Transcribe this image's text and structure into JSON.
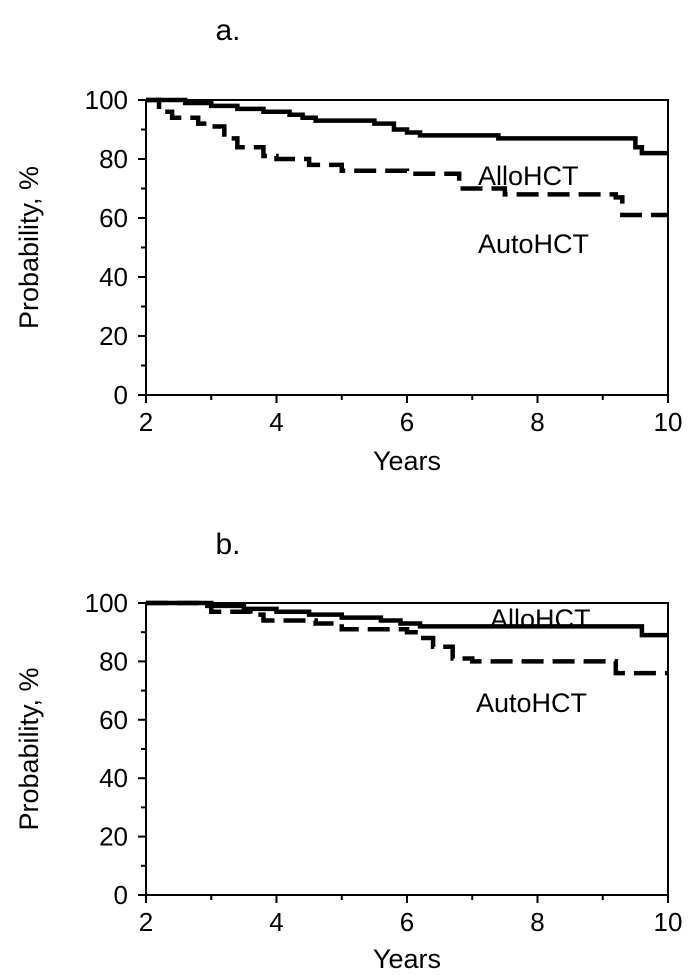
{
  "chart_data": [
    {
      "type": "line",
      "panel_label": "a.",
      "xlabel": "Years",
      "ylabel": "Probability, %",
      "xlim": [
        2,
        10
      ],
      "ylim": [
        0,
        100
      ],
      "x_ticks": [
        "2",
        "4",
        "6",
        "8",
        "10"
      ],
      "y_ticks": [
        "0",
        "20",
        "40",
        "60",
        "80",
        "100"
      ],
      "series": [
        {
          "name": "AlloHCT",
          "line_style": "solid",
          "points": [
            [
              2.0,
              100
            ],
            [
              2.6,
              99
            ],
            [
              3.0,
              98
            ],
            [
              3.4,
              97
            ],
            [
              3.8,
              96
            ],
            [
              4.2,
              95
            ],
            [
              4.4,
              94
            ],
            [
              4.6,
              93
            ],
            [
              5.0,
              93
            ],
            [
              5.5,
              92
            ],
            [
              5.8,
              90
            ],
            [
              6.0,
              89
            ],
            [
              6.2,
              88
            ],
            [
              7.0,
              88
            ],
            [
              7.4,
              87
            ],
            [
              8.0,
              87
            ],
            [
              9.2,
              87
            ],
            [
              9.5,
              84
            ],
            [
              9.6,
              82
            ],
            [
              10.0,
              82
            ]
          ]
        },
        {
          "name": "AutoHCT",
          "line_style": "dashed",
          "points": [
            [
              2.0,
              100
            ],
            [
              2.2,
              96
            ],
            [
              2.4,
              94
            ],
            [
              2.8,
              92
            ],
            [
              3.0,
              91
            ],
            [
              3.2,
              87
            ],
            [
              3.4,
              84
            ],
            [
              3.8,
              81
            ],
            [
              4.0,
              80
            ],
            [
              4.5,
              78
            ],
            [
              5.0,
              76
            ],
            [
              5.5,
              76
            ],
            [
              6.0,
              75
            ],
            [
              6.8,
              70
            ],
            [
              7.0,
              70
            ],
            [
              7.5,
              68
            ],
            [
              8.5,
              68
            ],
            [
              9.2,
              67
            ],
            [
              9.3,
              61
            ],
            [
              10.0,
              61
            ]
          ]
        }
      ]
    },
    {
      "type": "line",
      "panel_label": "b.",
      "xlabel": "Years",
      "ylabel": "Probability, %",
      "xlim": [
        2,
        10
      ],
      "ylim": [
        0,
        100
      ],
      "x_ticks": [
        "2",
        "4",
        "6",
        "8",
        "10"
      ],
      "y_ticks": [
        "0",
        "20",
        "40",
        "60",
        "80",
        "100"
      ],
      "series": [
        {
          "name": "AlloHCT",
          "line_style": "solid",
          "points": [
            [
              2.0,
              100
            ],
            [
              3.0,
              99
            ],
            [
              3.5,
              98
            ],
            [
              4.0,
              97
            ],
            [
              4.5,
              96
            ],
            [
              5.0,
              95
            ],
            [
              5.6,
              94
            ],
            [
              5.9,
              93
            ],
            [
              6.2,
              92
            ],
            [
              8.0,
              92
            ],
            [
              9.4,
              92
            ],
            [
              9.6,
              89
            ],
            [
              10.0,
              89
            ]
          ]
        },
        {
          "name": "AutoHCT",
          "line_style": "dashed",
          "points": [
            [
              2.0,
              100
            ],
            [
              2.8,
              99
            ],
            [
              3.0,
              97
            ],
            [
              3.6,
              96
            ],
            [
              3.8,
              94
            ],
            [
              4.6,
              93
            ],
            [
              5.0,
              91
            ],
            [
              5.8,
              91
            ],
            [
              6.0,
              90
            ],
            [
              6.2,
              88
            ],
            [
              6.4,
              85
            ],
            [
              6.7,
              81
            ],
            [
              7.0,
              80
            ],
            [
              8.0,
              80
            ],
            [
              9.0,
              80
            ],
            [
              9.2,
              76
            ],
            [
              10.0,
              76
            ]
          ]
        }
      ]
    }
  ]
}
